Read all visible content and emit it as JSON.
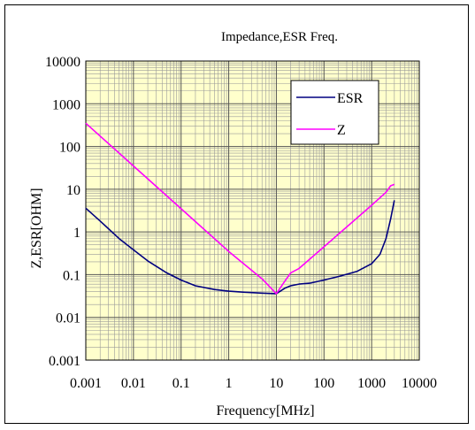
{
  "chart_data": {
    "type": "line",
    "title": "Impedance,ESR Freq.",
    "xlabel": "Frequency[MHz]",
    "ylabel": "Z,ESR[OHM]",
    "x_scale": "log",
    "y_scale": "log",
    "xlim": [
      0.001,
      10000
    ],
    "ylim": [
      0.001,
      10000
    ],
    "x_ticks": [
      "0.001",
      "0.01",
      "0.1",
      "1",
      "10",
      "100",
      "1000",
      "10000"
    ],
    "y_ticks": [
      "0.001",
      "0.01",
      "0.1",
      "1",
      "10",
      "100",
      "1000",
      "10000"
    ],
    "grid": true,
    "plot_background": "#ffffcc",
    "legend_position": "top-right",
    "series": [
      {
        "name": "ESR",
        "color": "#000080",
        "x": [
          0.001,
          0.002,
          0.005,
          0.01,
          0.02,
          0.05,
          0.1,
          0.2,
          0.5,
          1,
          2,
          5,
          10,
          15,
          20,
          30,
          50,
          100,
          200,
          500,
          1000,
          1500,
          2000,
          2500,
          3000
        ],
        "y": [
          3.6,
          1.8,
          0.7,
          0.38,
          0.21,
          0.11,
          0.075,
          0.055,
          0.045,
          0.041,
          0.039,
          0.037,
          0.036,
          0.048,
          0.055,
          0.06,
          0.063,
          0.075,
          0.09,
          0.12,
          0.18,
          0.3,
          0.7,
          2.0,
          5.5
        ]
      },
      {
        "name": "Z",
        "color": "#ff00ff",
        "x": [
          0.001,
          0.01,
          0.1,
          1,
          5,
          10,
          15,
          20,
          30,
          100,
          1000,
          2000,
          2500,
          3000
        ],
        "y": [
          350,
          35,
          3.5,
          0.35,
          0.08,
          0.036,
          0.07,
          0.11,
          0.14,
          0.45,
          4.2,
          8.5,
          12,
          13
        ]
      }
    ]
  }
}
